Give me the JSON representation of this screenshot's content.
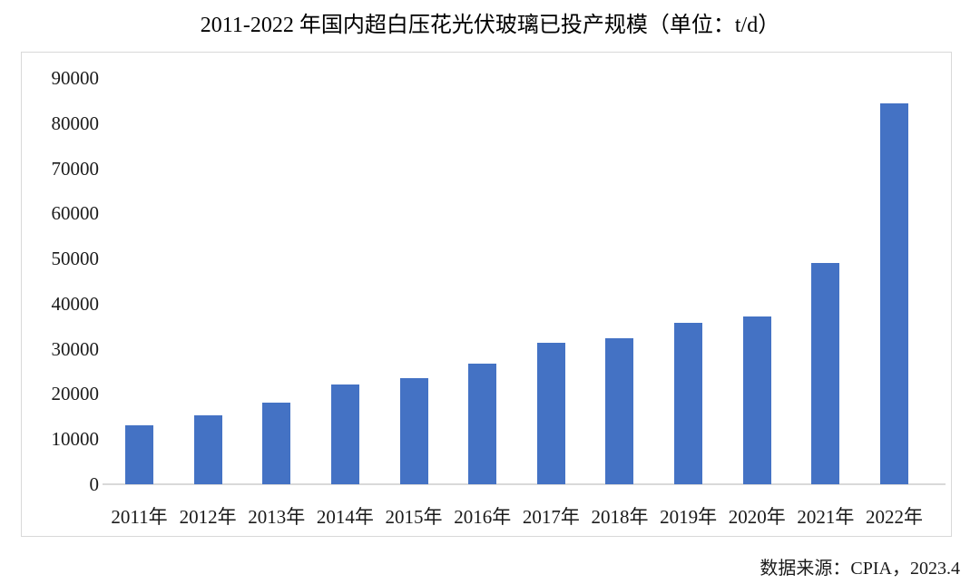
{
  "title": "2011-2022 年国内超白压花光伏玻璃已投产规模（单位：t/d）",
  "source": "数据来源：CPIA，2023.4",
  "colors": {
    "bar": "#4472c4",
    "border": "#d9d9d9",
    "axis_line": "#d9d9d9",
    "text": "#1a1a1a"
  },
  "chart_data": {
    "type": "bar",
    "title": "2011-2022 年国内超白压花光伏玻璃已投产规模（单位：t/d）",
    "unit": "t/d",
    "categories": [
      "2011年",
      "2012年",
      "2013年",
      "2014年",
      "2015年",
      "2016年",
      "2017年",
      "2018年",
      "2019年",
      "2020年",
      "2021年",
      "2022年"
    ],
    "values": [
      13100,
      15300,
      18100,
      22100,
      23500,
      26700,
      31300,
      32300,
      35800,
      37200,
      49000,
      84400
    ],
    "xlabel": "",
    "ylabel": "",
    "ylim": [
      0,
      90000
    ],
    "yticks": [
      0,
      10000,
      20000,
      30000,
      40000,
      50000,
      60000,
      70000,
      80000,
      90000
    ],
    "grid": false,
    "legend": false,
    "source": "数据来源：CPIA，2023.4"
  }
}
